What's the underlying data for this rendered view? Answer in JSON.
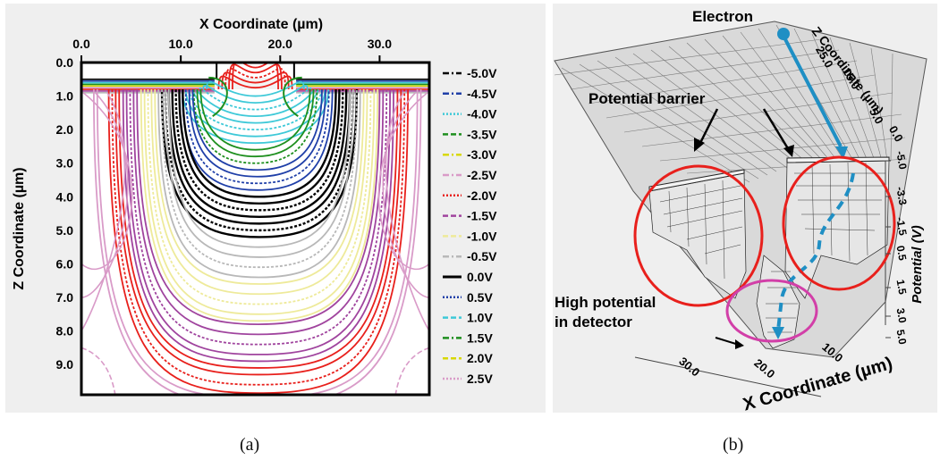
{
  "chart_data": [
    {
      "type": "contour",
      "panel": "a",
      "xlabel": "X Coordinate (µm)",
      "ylabel": "Z Coordinate (µm)",
      "xlim": [
        0,
        35
      ],
      "ylim": [
        0,
        9.9
      ],
      "x_ticks": [
        "0.0",
        "10.0",
        "20.0",
        "30.0"
      ],
      "y_ticks": [
        "0.0",
        "1.0",
        "2.0",
        "3.0",
        "4.0",
        "5.0",
        "6.0",
        "7.0",
        "8.0",
        "9.0"
      ],
      "legend_position": "right",
      "series": [
        {
          "name": "-5.0V",
          "value": -5.0,
          "color": "#000000",
          "dash": "dashdot"
        },
        {
          "name": "-4.5V",
          "value": -4.5,
          "color": "#1f3fa8",
          "dash": "dashdot"
        },
        {
          "name": "-4.0V",
          "value": -4.0,
          "color": "#3ec9d8",
          "dash": "dotted"
        },
        {
          "name": "-3.5V",
          "value": -3.5,
          "color": "#1e8f1e",
          "dash": "dashed"
        },
        {
          "name": "-3.0V",
          "value": -3.0,
          "color": "#d8d800",
          "dash": "dashdot"
        },
        {
          "name": "-2.5V",
          "value": -2.5,
          "color": "#d99bc8",
          "dash": "dashdot"
        },
        {
          "name": "-2.0V",
          "value": -2.0,
          "color": "#e8201c",
          "dash": "dotted"
        },
        {
          "name": "-1.5V",
          "value": -1.5,
          "color": "#a0449e",
          "dash": "dashed"
        },
        {
          "name": "-1.0V",
          "value": -1.0,
          "color": "#eeea9a",
          "dash": "dashed"
        },
        {
          "name": "-0.5V",
          "value": -0.5,
          "color": "#b8b8b8",
          "dash": "dashdot"
        },
        {
          "name": "0.0V",
          "value": 0.0,
          "color": "#000000",
          "dash": "solid"
        },
        {
          "name": "0.5V",
          "value": 0.5,
          "color": "#1f3fa8",
          "dash": "dotted"
        },
        {
          "name": "1.0V",
          "value": 1.0,
          "color": "#3ec9d8",
          "dash": "dashed"
        },
        {
          "name": "1.5V",
          "value": 1.5,
          "color": "#1e8f1e",
          "dash": "dashdot"
        },
        {
          "name": "2.0V",
          "value": 2.0,
          "color": "#d8d800",
          "dash": "dashed"
        },
        {
          "name": "2.5V",
          "value": 2.5,
          "color": "#d99bc8",
          "dash": "dotted"
        }
      ],
      "contour_groups": [
        {
          "color": "#e8201c",
          "x0": 15.2,
          "x1": 19.8,
          "z_tops": [
            0.15,
            0.3,
            0.45,
            0.6,
            0.75
          ]
        },
        {
          "color": "#3ec9d8",
          "x0": 12.6,
          "x1": 22.4,
          "z_tops": [
            1.0,
            1.2,
            1.4,
            1.6,
            1.8,
            2.0,
            2.2,
            2.4
          ]
        },
        {
          "color": "#1e8f1e",
          "x0": 12.0,
          "x1": 23.0,
          "z_tops": [
            2.6,
            2.8,
            3.0
          ]
        },
        {
          "color": "#1f3fa8",
          "x0": 11.2,
          "x1": 24.2,
          "z_tops": [
            3.2,
            3.4,
            3.6,
            3.8
          ]
        },
        {
          "color": "#000000",
          "x0": 10.2,
          "x1": 25.6,
          "z_tops": [
            4.0,
            4.2,
            4.4,
            4.6,
            4.8,
            5.0,
            5.2
          ]
        },
        {
          "color": "#b8b8b8",
          "x0": 8.8,
          "x1": 27.0,
          "z_tops": [
            5.5,
            5.8,
            6.1,
            6.4
          ]
        },
        {
          "color": "#eeea9a",
          "x0": 7.4,
          "x1": 28.4,
          "z_tops": [
            6.6,
            6.9,
            7.2,
            7.5,
            7.7
          ]
        },
        {
          "color": "#a0449e",
          "x0": 5.6,
          "x1": 30.0,
          "z_tops": [
            7.8,
            8.1,
            8.4,
            8.7,
            8.9
          ]
        },
        {
          "color": "#e8201c",
          "x0": 3.8,
          "x1": 31.8,
          "z_tops": [
            9.1,
            9.3,
            9.6,
            9.85
          ]
        },
        {
          "color": "#d99bc8",
          "x0": 1.6,
          "x1": 33.8,
          "z_tops": [
            10.0,
            10.2
          ]
        }
      ],
      "caption": "(a)"
    },
    {
      "type": "surface3d",
      "panel": "b",
      "xlabel": "X Coordinate (µm)",
      "ylabel": "Z Coordinate (µm)",
      "zlabel": "Potential (V)",
      "x_ticks": [
        "30.0",
        "20.0",
        "10.0"
      ],
      "y_ticks": [
        "25.0",
        "15.0",
        "5.0",
        "0.0"
      ],
      "z_ticks": [
        "-5.0",
        "-3.3",
        "-1.5",
        "0.5",
        "1.5",
        "3.0",
        "5.0"
      ],
      "annotations": [
        "Electron",
        "Potential barrier",
        "High potential",
        "in detector"
      ],
      "caption": "(b)"
    }
  ]
}
